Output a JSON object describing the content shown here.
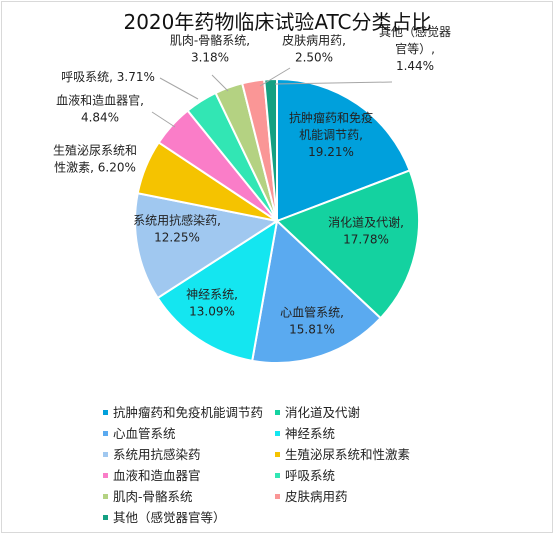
{
  "chart_data": {
    "type": "pie",
    "title": "2020年药物临床试验ATC分类占比",
    "slices": [
      {
        "name": "抗肿瘤药和免疫机能调节药",
        "value": 19.21,
        "color": "#00a0dc",
        "label": [
          "抗肿瘤药和免疫",
          "机能调节药,",
          "19.21%"
        ],
        "value_label": "19.21%"
      },
      {
        "name": "消化道及代谢",
        "value": 17.78,
        "color": "#14d2a0",
        "label": [
          "消化道及代谢,",
          "17.78%"
        ],
        "value_label": "17.78%"
      },
      {
        "name": "心血管系统",
        "value": 15.81,
        "color": "#5aaaf0",
        "label": [
          "心血管系统,",
          "15.81%"
        ],
        "value_label": "15.81%"
      },
      {
        "name": "神经系统",
        "value": 13.09,
        "color": "#14e6f0",
        "label": [
          "神经系统,",
          "13.09%"
        ],
        "value_label": "13.09%"
      },
      {
        "name": "系统用抗感染药",
        "value": 12.25,
        "color": "#a0c8f0",
        "label": [
          "系统用抗感染药,",
          "12.25%"
        ],
        "value_label": "12.25%"
      },
      {
        "name": "生殖泌尿系统和性激素",
        "value": 6.2,
        "color": "#f5c300",
        "label": [
          "生殖泌尿系统和",
          "性激素, 6.20%"
        ],
        "value_label": "6.20%"
      },
      {
        "name": "血液和造血器官",
        "value": 4.84,
        "color": "#fa7dc8",
        "label": [
          "血液和造血器官,",
          "4.84%"
        ],
        "value_label": "4.84%"
      },
      {
        "name": "呼吸系统",
        "value": 3.71,
        "color": "#32e6b4",
        "label": [
          "呼吸系统, 3.71%"
        ],
        "value_label": "3.71%"
      },
      {
        "name": "肌肉-骨骼系统",
        "value": 3.18,
        "color": "#b4d282",
        "label": [
          "肌肉-骨骼系统,",
          "3.18%"
        ],
        "value_label": "3.18%"
      },
      {
        "name": "皮肤病用药",
        "value": 2.5,
        "color": "#fa9696",
        "label": [
          "皮肤病用药,",
          "2.50%"
        ],
        "value_label": "2.50%"
      },
      {
        "name": "其他（感觉器官等）",
        "value": 1.44,
        "color": "#14a082",
        "label": [
          "其他（感觉器",
          "官等）,",
          "1.44%"
        ],
        "value_label": "1.44%"
      }
    ],
    "legend_position": "bottom"
  }
}
